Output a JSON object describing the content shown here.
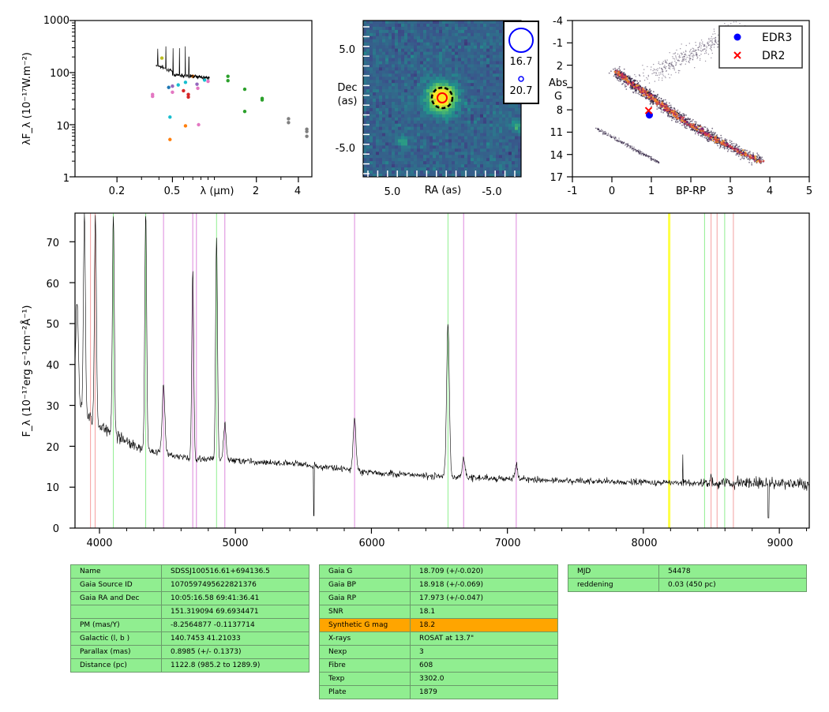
{
  "sed_panel": {
    "ylabel": "λF_λ (10⁻¹⁷W.m⁻²)",
    "xlabel": "λ (μm)",
    "y_ticks": [
      "1",
      "10",
      "100",
      "1000"
    ],
    "x_ticks": [
      "0.2",
      "0.5",
      "2",
      "4"
    ]
  },
  "image_panel": {
    "xlabel": "RA (as)",
    "ylabel_line1": "Dec",
    "ylabel_line2": "(as)",
    "x_ticks": [
      "5.0",
      "-5.0"
    ],
    "y_ticks": [
      "5.0",
      "-5.0"
    ],
    "legend": [
      {
        "label": "16.7",
        "color": "#0000ff"
      },
      {
        "label": "20.7",
        "color": "#0000ff"
      }
    ]
  },
  "hr_panel": {
    "xlabel": "BP-RP",
    "ylabel_line1": "Abs",
    "ylabel_line2": "G",
    "x_ticks": [
      "-1",
      "0",
      "1",
      "2",
      "3",
      "4",
      "5"
    ],
    "y_ticks": [
      "-4",
      "-1",
      "2",
      "5",
      "8",
      "11",
      "14",
      "17"
    ],
    "legend": [
      {
        "label": "EDR3",
        "color": "#0000ff",
        "marker": "circle"
      },
      {
        "label": "DR2",
        "color": "#ff0000",
        "marker": "x"
      }
    ]
  },
  "spectrum_panel": {
    "ylabel": "F_λ (10⁻¹⁷erg s⁻¹cm⁻²Å⁻¹)",
    "x_ticks": [
      "4000",
      "5000",
      "6000",
      "7000",
      "8000",
      "9000"
    ],
    "y_ticks": [
      "0",
      "10",
      "20",
      "30",
      "40",
      "50",
      "60",
      "70"
    ]
  },
  "info_tables": {
    "object": [
      {
        "key": "Name",
        "value": "SDSSJ100516.61+694136.5"
      },
      {
        "key": "Gaia Source ID",
        "value": "1070597495622821376"
      },
      {
        "key": "Gaia RA and Dec",
        "value": "10:05:16.58    69:41:36.41"
      },
      {
        "key": "",
        "value": "151.319094    69.6934471"
      },
      {
        "key": "PM (mas/Y)",
        "value": "-8.2564877    -0.1137714"
      },
      {
        "key": "Galactic (l, b )",
        "value": "140.7453    41.21033"
      },
      {
        "key": "Parallax (mas)",
        "value": "0.8985 (+/- 0.1373)"
      },
      {
        "key": "Distance (pc)",
        "value": "1122.8 (985.2 to 1289.9)"
      }
    ],
    "photometry": [
      {
        "key": "Gaia G",
        "value": "18.709 (+/-0.020)"
      },
      {
        "key": "Gaia BP",
        "value": "18.918 (+/-0.069)"
      },
      {
        "key": "Gaia RP",
        "value": "17.973 (+/-0.047)"
      },
      {
        "key": "SNR",
        "value": "18.1"
      },
      {
        "key": "Synthetic G mag",
        "value": "18.2",
        "highlight": "#ffa500"
      },
      {
        "key": "X-rays",
        "value": "ROSAT at 13.7\""
      },
      {
        "key": "Nexp",
        "value": "3"
      },
      {
        "key": "Fibre",
        "value": "608"
      },
      {
        "key": "Texp",
        "value": "3302.0"
      },
      {
        "key": "Plate",
        "value": "1879"
      }
    ],
    "observation": [
      {
        "key": "MJD",
        "value": "54478"
      },
      {
        "key": "reddening",
        "value": "0.03 (450 pc)"
      }
    ]
  },
  "chart_data": [
    {
      "type": "scatter",
      "panel": "SED",
      "xlabel": "λ (μm)",
      "ylabel": "λF_λ (10⁻¹⁷W.m⁻²)",
      "x_scale": "log",
      "y_scale": "log",
      "xlim": [
        0.1,
        5.0
      ],
      "ylim": [
        1,
        1000
      ],
      "points": [
        {
          "x": 0.36,
          "y": 38,
          "color": "#e377c2"
        },
        {
          "x": 0.36,
          "y": 35,
          "color": "#e377c2"
        },
        {
          "x": 0.42,
          "y": 190,
          "color": "#bcbd22"
        },
        {
          "x": 0.47,
          "y": 52,
          "color": "#1f77b4"
        },
        {
          "x": 0.48,
          "y": 14,
          "color": "#17becf"
        },
        {
          "x": 0.48,
          "y": 5.2,
          "color": "#ff7f0e"
        },
        {
          "x": 0.5,
          "y": 55,
          "color": "#9467bd"
        },
        {
          "x": 0.5,
          "y": 42,
          "color": "#e377c2"
        },
        {
          "x": 0.55,
          "y": 58,
          "color": "#17becf"
        },
        {
          "x": 0.6,
          "y": 45,
          "color": "#d62728"
        },
        {
          "x": 0.62,
          "y": 65,
          "color": "#17becf"
        },
        {
          "x": 0.62,
          "y": 9.5,
          "color": "#ff7f0e"
        },
        {
          "x": 0.65,
          "y": 38,
          "color": "#d62728"
        },
        {
          "x": 0.65,
          "y": 34,
          "color": "#d62728"
        },
        {
          "x": 0.7,
          "y": 85,
          "color": "#ff7f0e"
        },
        {
          "x": 0.75,
          "y": 60,
          "color": "#9467bd"
        },
        {
          "x": 0.76,
          "y": 50,
          "color": "#e377c2"
        },
        {
          "x": 0.77,
          "y": 10,
          "color": "#e377c2"
        },
        {
          "x": 0.85,
          "y": 72,
          "color": "#17becf"
        },
        {
          "x": 0.9,
          "y": 68,
          "color": "#e377c2"
        },
        {
          "x": 1.25,
          "y": 85,
          "color": "#2ca02c"
        },
        {
          "x": 1.25,
          "y": 70,
          "color": "#2ca02c"
        },
        {
          "x": 1.65,
          "y": 48,
          "color": "#2ca02c"
        },
        {
          "x": 1.65,
          "y": 18,
          "color": "#2ca02c"
        },
        {
          "x": 2.2,
          "y": 32,
          "color": "#2ca02c"
        },
        {
          "x": 2.2,
          "y": 30,
          "color": "#2ca02c"
        },
        {
          "x": 3.4,
          "y": 13,
          "color": "#7f7f7f"
        },
        {
          "x": 3.4,
          "y": 11,
          "color": "#7f7f7f"
        },
        {
          "x": 4.6,
          "y": 8.2,
          "color": "#7f7f7f"
        },
        {
          "x": 4.6,
          "y": 7.4,
          "color": "#7f7f7f"
        },
        {
          "x": 4.6,
          "y": 6.0,
          "color": "#7f7f7f"
        }
      ]
    },
    {
      "type": "heatmap",
      "panel": "image",
      "xlabel": "RA (as)",
      "ylabel": "Dec (as)",
      "xlim": [
        10,
        -10
      ],
      "ylim": [
        -10,
        10
      ],
      "source_markers": [
        {
          "x": 0.0,
          "y": 0.0,
          "color": "#ff0000"
        },
        {
          "x": 0.0,
          "y": 0.0,
          "color": "#000000"
        }
      ],
      "legend": [
        "16.7",
        "20.7"
      ]
    },
    {
      "type": "scatter",
      "panel": "HR diagram",
      "xlabel": "BP-RP",
      "ylabel": "Abs G",
      "xlim": [
        -1,
        5
      ],
      "ylim": [
        17,
        -4
      ],
      "series": [
        {
          "name": "EDR3",
          "x": [
            0.95
          ],
          "y": [
            8.7
          ],
          "color": "#0000ff",
          "marker": "circle"
        },
        {
          "name": "DR2",
          "x": [
            0.93
          ],
          "y": [
            8.1
          ],
          "color": "#ff0000",
          "marker": "x"
        }
      ]
    },
    {
      "type": "line",
      "panel": "spectrum",
      "xlabel": "",
      "ylabel": "F_λ (10⁻¹⁷erg s⁻¹cm⁻²Å⁻¹)",
      "xlim": [
        3820,
        9220
      ],
      "ylim": [
        0,
        77
      ],
      "continuum": [
        {
          "x": 3820,
          "y": 31
        },
        {
          "x": 3900,
          "y": 28
        },
        {
          "x": 4000,
          "y": 25
        },
        {
          "x": 4100,
          "y": 23
        },
        {
          "x": 4200,
          "y": 21
        },
        {
          "x": 4300,
          "y": 19.5
        },
        {
          "x": 4500,
          "y": 18
        },
        {
          "x": 4700,
          "y": 17
        },
        {
          "x": 5000,
          "y": 16.5
        },
        {
          "x": 5300,
          "y": 16
        },
        {
          "x": 5500,
          "y": 15.5
        },
        {
          "x": 5800,
          "y": 14.5
        },
        {
          "x": 6000,
          "y": 13.5
        },
        {
          "x": 6300,
          "y": 13
        },
        {
          "x": 6600,
          "y": 12.5
        },
        {
          "x": 7000,
          "y": 12
        },
        {
          "x": 7500,
          "y": 11.5
        },
        {
          "x": 8000,
          "y": 11.2
        },
        {
          "x": 8500,
          "y": 11
        },
        {
          "x": 9000,
          "y": 11
        },
        {
          "x": 9220,
          "y": 10.5
        }
      ],
      "emission_lines": [
        {
          "x": 3835,
          "peak": 55
        },
        {
          "x": 3889,
          "peak": 77
        },
        {
          "x": 3970,
          "peak": 77
        },
        {
          "x": 4102,
          "peak": 77
        },
        {
          "x": 4340,
          "peak": 77
        },
        {
          "x": 4471,
          "peak": 35
        },
        {
          "x": 4686,
          "peak": 63
        },
        {
          "x": 4861,
          "peak": 71.5
        },
        {
          "x": 4922,
          "peak": 25
        },
        {
          "x": 5876,
          "peak": 27
        },
        {
          "x": 6563,
          "peak": 50
        },
        {
          "x": 6678,
          "peak": 17
        },
        {
          "x": 7065,
          "peak": 16
        }
      ],
      "reference_lines": [
        {
          "x": 3934,
          "color": "#f4a0a0"
        },
        {
          "x": 3968,
          "color": "#f4a0a0"
        },
        {
          "x": 4102,
          "color": "#90ee90"
        },
        {
          "x": 4340,
          "color": "#90ee90"
        },
        {
          "x": 4471,
          "color": "#dd88dd"
        },
        {
          "x": 4686,
          "color": "#dd88dd"
        },
        {
          "x": 4713,
          "color": "#dd88dd"
        },
        {
          "x": 4861,
          "color": "#90ee90"
        },
        {
          "x": 4922,
          "color": "#dd88dd"
        },
        {
          "x": 5876,
          "color": "#dd88dd"
        },
        {
          "x": 6563,
          "color": "#90ee90"
        },
        {
          "x": 6678,
          "color": "#dd88dd"
        },
        {
          "x": 7065,
          "color": "#dd88dd"
        },
        {
          "x": 8190,
          "color": "#ffff44"
        },
        {
          "x": 8450,
          "color": "#90ee90"
        },
        {
          "x": 8498,
          "color": "#f4a0a0"
        },
        {
          "x": 8542,
          "color": "#f4a0a0"
        },
        {
          "x": 8598,
          "color": "#90ee90"
        },
        {
          "x": 8662,
          "color": "#f4a0a0"
        }
      ]
    }
  ]
}
